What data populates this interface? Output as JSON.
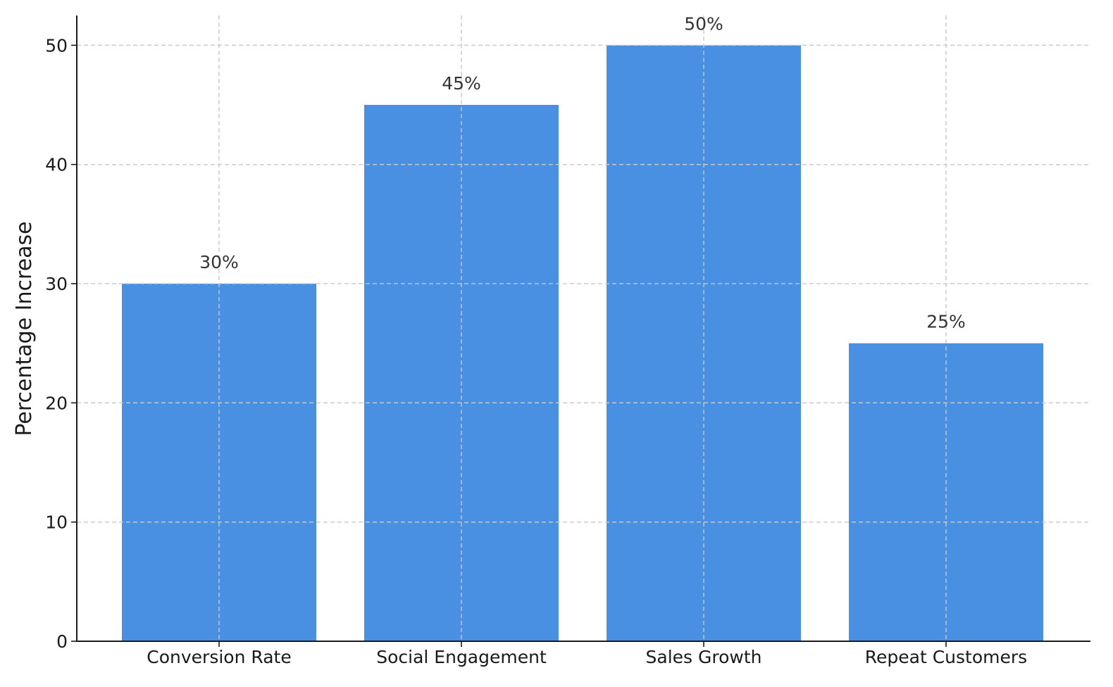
{
  "chart_data": {
    "type": "bar",
    "title": "",
    "xlabel": "",
    "ylabel": "Percentage Increase",
    "categories": [
      "Conversion Rate",
      "Social Engagement",
      "Sales Growth",
      "Repeat Customers"
    ],
    "values": [
      30,
      45,
      50,
      25
    ],
    "data_labels": [
      "30%",
      "45%",
      "50%",
      "25%"
    ],
    "ylim": [
      0,
      52.5
    ],
    "yticks": [
      0,
      10,
      20,
      30,
      40,
      50
    ],
    "grid": true,
    "bar_color": "#4a90e2"
  }
}
